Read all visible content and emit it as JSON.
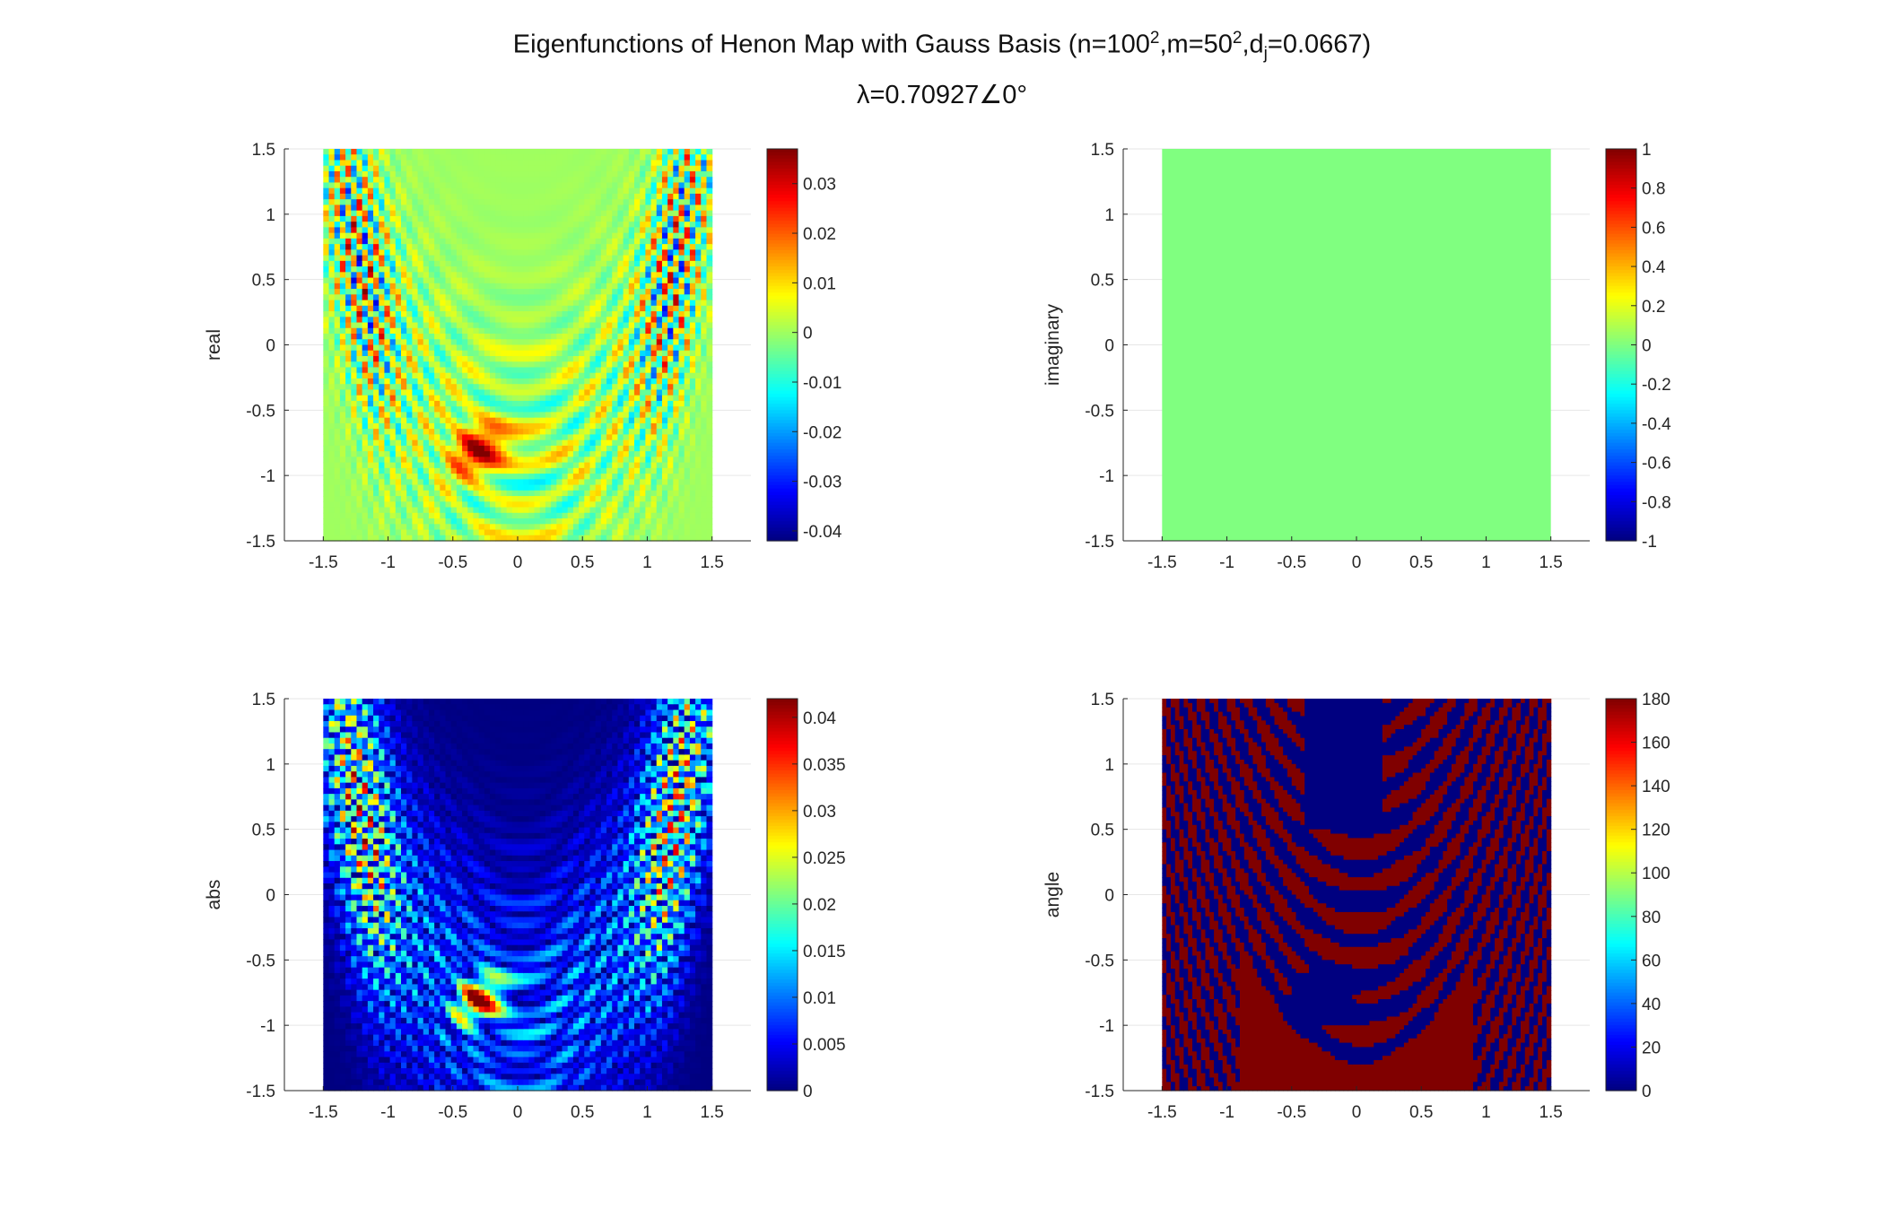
{
  "figure": {
    "title_main": "Eigenfunctions of Henon Map with Gauss Basis (n=100",
    "title_sup1": "2",
    "title_mid1": ",m=50",
    "title_sup2": "2",
    "title_mid2": ",d",
    "title_sub": "j",
    "title_end": "=0.0667)",
    "subtitle": "λ=0.70927∠0°"
  },
  "chart_data": [
    {
      "type": "heatmap",
      "ylabel": "real",
      "xlim": [
        -1.8,
        1.8
      ],
      "ylim": [
        -1.5,
        1.5
      ],
      "data_extent_x": [
        -1.5,
        1.5
      ],
      "xticks": [
        "-1.5",
        "-1",
        "-0.5",
        "0",
        "0.5",
        "1",
        "1.5"
      ],
      "yticks": [
        "1.5",
        "1",
        "0.5",
        "0",
        "-0.5",
        "-1",
        "-1.5"
      ],
      "colormap": "jet",
      "clim": [
        -0.042,
        0.037
      ],
      "colorbar_ticks": [
        "0.03",
        "0.02",
        "0.01",
        "0",
        "-0.01",
        "-0.02",
        "-0.03",
        "-0.04"
      ],
      "colorbar_values": [
        0.03,
        0.02,
        0.01,
        0,
        -0.01,
        -0.02,
        -0.03,
        -0.04
      ],
      "background_value": 0
    },
    {
      "type": "heatmap",
      "ylabel": "imaginary",
      "xlim": [
        -1.8,
        1.8
      ],
      "ylim": [
        -1.5,
        1.5
      ],
      "data_extent_x": [
        -1.5,
        1.5
      ],
      "xticks": [
        "-1.5",
        "-1",
        "-0.5",
        "0",
        "0.5",
        "1",
        "1.5"
      ],
      "yticks": [
        "1.5",
        "1",
        "0.5",
        "0",
        "-0.5",
        "-1",
        "-1.5"
      ],
      "colormap": "jet",
      "clim": [
        -1,
        1
      ],
      "colorbar_ticks": [
        "1",
        "0.8",
        "0.6",
        "0.4",
        "0.2",
        "0",
        "-0.2",
        "-0.4",
        "-0.6",
        "-0.8",
        "-1"
      ],
      "colorbar_values": [
        1,
        0.8,
        0.6,
        0.4,
        0.2,
        0,
        -0.2,
        -0.4,
        -0.6,
        -0.8,
        -1
      ],
      "background_value": 0
    },
    {
      "type": "heatmap",
      "ylabel": "abs",
      "xlim": [
        -1.8,
        1.8
      ],
      "ylim": [
        -1.5,
        1.5
      ],
      "data_extent_x": [
        -1.5,
        1.5
      ],
      "xticks": [
        "-1.5",
        "-1",
        "-0.5",
        "0",
        "0.5",
        "1",
        "1.5"
      ],
      "yticks": [
        "1.5",
        "1",
        "0.5",
        "0",
        "-0.5",
        "-1",
        "-1.5"
      ],
      "colormap": "jet",
      "clim": [
        0,
        0.042
      ],
      "colorbar_ticks": [
        "0.04",
        "0.035",
        "0.03",
        "0.025",
        "0.02",
        "0.015",
        "0.01",
        "0.005",
        "0"
      ],
      "colorbar_values": [
        0.04,
        0.035,
        0.03,
        0.025,
        0.02,
        0.015,
        0.01,
        0.005,
        0
      ],
      "background_value": 0
    },
    {
      "type": "heatmap",
      "ylabel": "angle",
      "xlim": [
        -1.8,
        1.8
      ],
      "ylim": [
        -1.5,
        1.5
      ],
      "data_extent_x": [
        -1.5,
        1.5
      ],
      "xticks": [
        "-1.5",
        "-1",
        "-0.5",
        "0",
        "0.5",
        "1",
        "1.5"
      ],
      "yticks": [
        "1.5",
        "1",
        "0.5",
        "0",
        "-0.5",
        "-1",
        "-1.5"
      ],
      "colormap": "jet",
      "clim": [
        0,
        180
      ],
      "colorbar_ticks": [
        "180",
        "160",
        "140",
        "120",
        "100",
        "80",
        "60",
        "40",
        "20",
        "0"
      ],
      "colorbar_values": [
        180,
        160,
        140,
        120,
        100,
        80,
        60,
        40,
        20,
        0
      ],
      "background_value": 0
    }
  ]
}
